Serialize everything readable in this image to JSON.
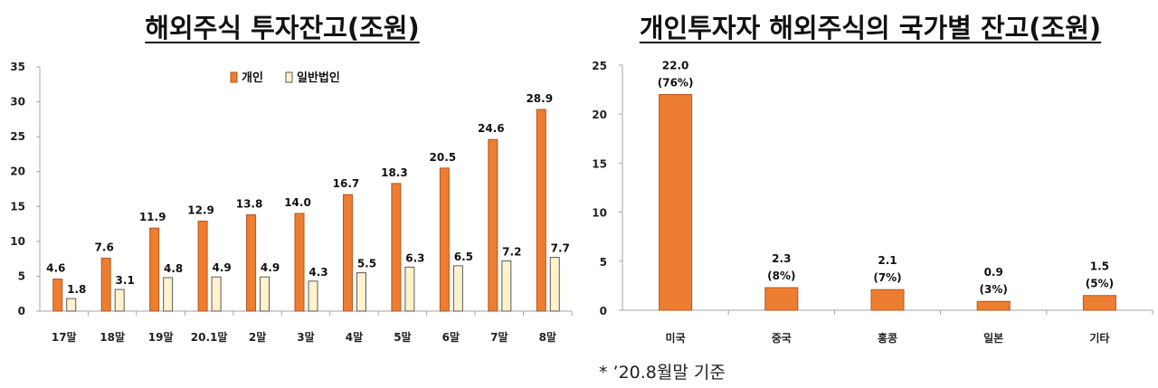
{
  "colors": {
    "individual": "#ED7D31",
    "individual_stroke": "#B5561A",
    "corporate": "#FFF2CC",
    "corporate_stroke": "#5a5a5a",
    "axis": "#a6a6a6"
  },
  "left_title": "해외주식 투자잔고(조원)",
  "right_title": "개인투자자 해외주식의 국가별 잔고(조원)",
  "note": "* ’20.8월말 기준",
  "chart_data": [
    {
      "type": "bar",
      "title": "해외주식 투자잔고(조원)",
      "categories": [
        "17말",
        "18말",
        "19말",
        "20.1말",
        "2말",
        "3말",
        "4말",
        "5말",
        "6말",
        "7말",
        "8말"
      ],
      "series": [
        {
          "name": "개인",
          "values": [
            4.6,
            7.6,
            11.9,
            12.9,
            13.8,
            14.0,
            16.7,
            18.3,
            20.5,
            24.6,
            28.9
          ],
          "labels": [
            "4.6",
            "7.6",
            "11.9",
            "12.9",
            "13.8",
            "14.0",
            "16.7",
            "18.3",
            "20.5",
            "24.6",
            "28.9"
          ]
        },
        {
          "name": "일반법인",
          "values": [
            1.8,
            3.1,
            4.8,
            4.9,
            4.9,
            4.3,
            5.5,
            6.3,
            6.5,
            7.2,
            7.7
          ],
          "labels": [
            "1.8",
            "3.1",
            "4.8",
            "4.9",
            "4.9",
            "4.3",
            "5.5",
            "6.3",
            "6.5",
            "7.2",
            "7.7"
          ]
        }
      ],
      "ylim": [
        0,
        35
      ],
      "yticks": [
        "0",
        "5",
        "10",
        "15",
        "20",
        "25",
        "30",
        "35"
      ],
      "legend": "top-center",
      "grid": false
    },
    {
      "type": "bar",
      "title": "개인투자자 해외주식의 국가별 잔고(조원)",
      "categories": [
        "미국",
        "중국",
        "홍콩",
        "일본",
        "기타"
      ],
      "series": [
        {
          "values": [
            22.0,
            2.3,
            2.1,
            0.9,
            1.5
          ],
          "labels": [
            "22.0",
            "2.3",
            "2.1",
            "0.9",
            "1.5"
          ],
          "shares": [
            "(76%)",
            "(8%)",
            "(7%)",
            "(3%)",
            "(5%)"
          ]
        }
      ],
      "ylim": [
        0,
        25
      ],
      "yticks": [
        "0",
        "5",
        "10",
        "15",
        "20",
        "25"
      ],
      "grid": false
    }
  ]
}
